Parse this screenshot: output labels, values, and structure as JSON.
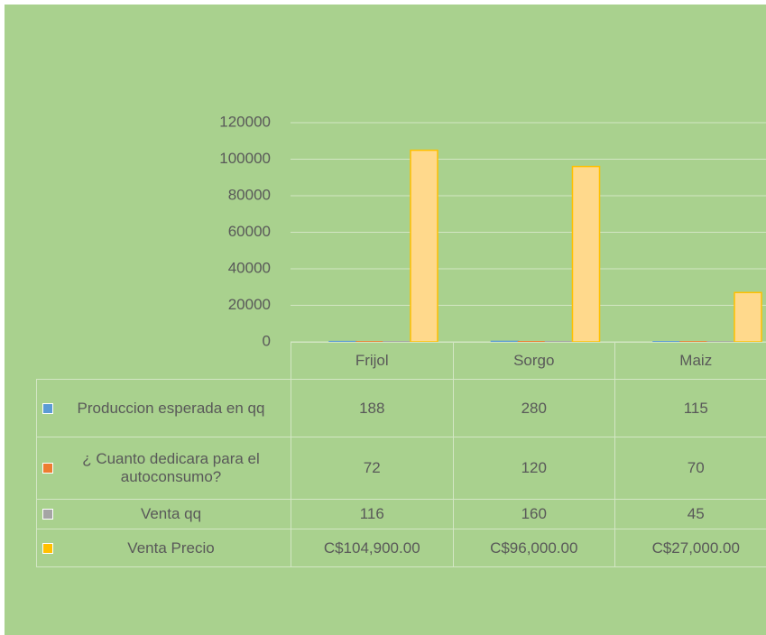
{
  "chart_data": {
    "type": "bar",
    "categories": [
      "Frijol",
      "Sorgo",
      "Maiz"
    ],
    "series": [
      {
        "name": "Produccion esperada en qq",
        "color": "#5b9bd5",
        "values": [
          188,
          280,
          115
        ]
      },
      {
        "name": "¿ Cuanto dedicara para el autoconsumo?",
        "color": "#ed7d31",
        "values": [
          72,
          120,
          70
        ]
      },
      {
        "name": "Venta qq",
        "color": "#a5a5a5",
        "values": [
          116,
          160,
          45
        ]
      },
      {
        "name": "Venta Precio",
        "color": "#ffc000",
        "values": [
          104900,
          96000,
          27000
        ],
        "value_labels": [
          "C$104,900.00",
          "C$96,000.00",
          "C$27,000.00"
        ]
      }
    ],
    "ylim": [
      0,
      120000
    ],
    "yticks": [
      0,
      20000,
      40000,
      60000,
      80000,
      100000,
      120000
    ],
    "grid": true
  }
}
